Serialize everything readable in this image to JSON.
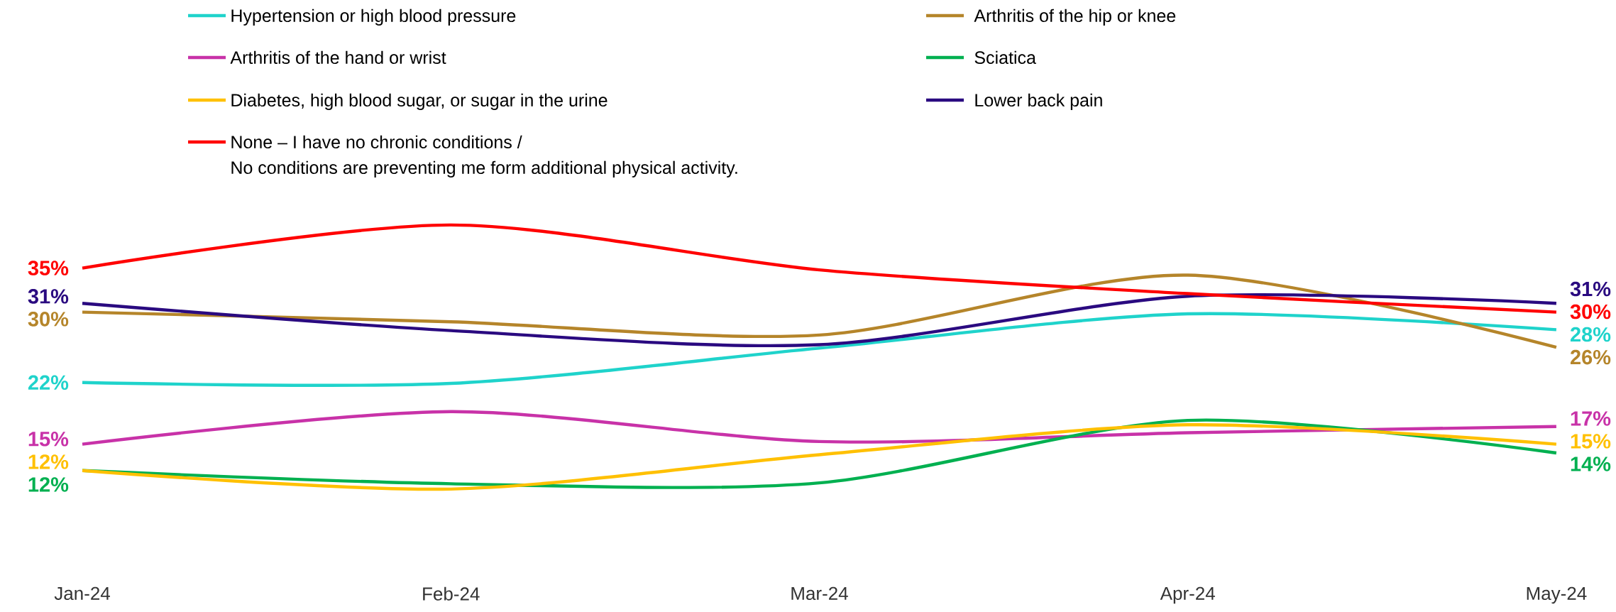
{
  "chart_data": {
    "type": "line",
    "categories": [
      "Jan-24",
      "Feb-24",
      "Mar-24",
      "Apr-24",
      "May-24"
    ],
    "tick_labels": "x",
    "legend": "top",
    "marker": "none",
    "line_style": "solid",
    "grid": false,
    "series": [
      {
        "name": "Hypertension or high blood pressure",
        "color": "#1fd3cb",
        "values": [
          22,
          21.9,
          25.9,
          29.8,
          28
        ],
        "value_labels": [
          "22%",
          null,
          null,
          null,
          "28%"
        ]
      },
      {
        "name": "Arthritis of the hip or knee",
        "color": "#b5852a",
        "values": [
          30,
          28.9,
          27.4,
          34.2,
          26
        ],
        "value_labels": [
          "30%",
          null,
          null,
          null,
          "26%"
        ]
      },
      {
        "name": "Arthritis of the hand or wrist",
        "color": "#c832a8",
        "values": [
          15,
          18.7,
          15.3,
          16.3,
          17
        ],
        "value_labels": [
          "15%",
          null,
          null,
          null,
          "17%"
        ]
      },
      {
        "name": "Sciatica",
        "color": "#00b050",
        "values": [
          12,
          10.5,
          10.6,
          17.7,
          14
        ],
        "value_labels": [
          "12%",
          null,
          null,
          null,
          "14%"
        ]
      },
      {
        "name": "Diabetes, high blood sugar, or sugar in the urine",
        "color": "#ffc000",
        "values": [
          12,
          9.9,
          13.8,
          17.2,
          15
        ],
        "value_labels": [
          "12%",
          null,
          null,
          null,
          "15%"
        ]
      },
      {
        "name": "Lower back pain",
        "color": "#2a0a80",
        "values": [
          31,
          27.9,
          26.3,
          31.8,
          31
        ],
        "value_labels": [
          "31%",
          null,
          null,
          null,
          "31%"
        ]
      },
      {
        "name": "None – I have no chronic conditions / No conditions are preventing me form additional physical activity.",
        "color": "#ff0000",
        "values": [
          35,
          39.9,
          34.8,
          32.1,
          30
        ],
        "value_labels": [
          "35%",
          null,
          null,
          null,
          "30%"
        ]
      }
    ]
  }
}
